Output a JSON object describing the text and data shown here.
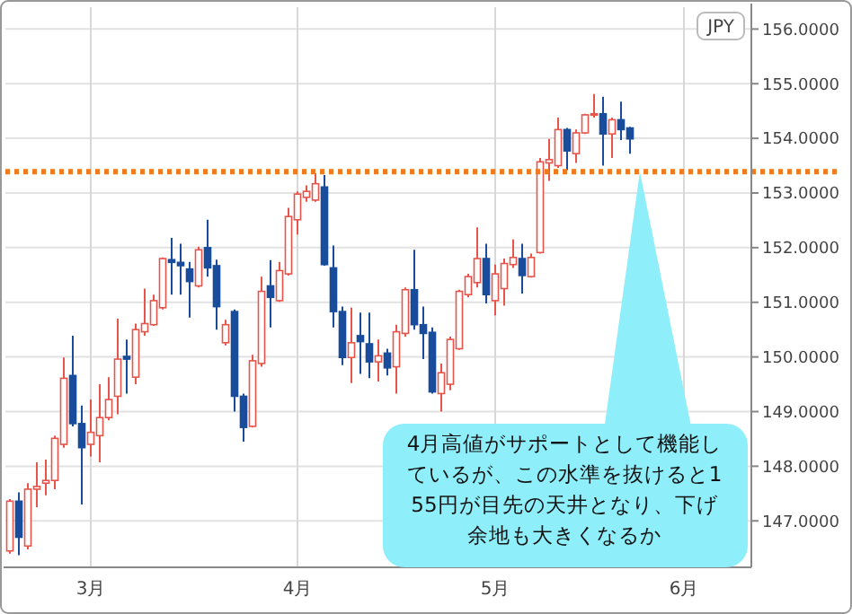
{
  "chart_data": {
    "type": "candlestick",
    "categories": [
      null,
      null,
      null,
      null,
      null,
      null,
      null,
      null,
      null,
      "3月",
      null,
      null,
      null,
      null,
      null,
      null,
      null,
      null,
      null,
      null,
      null,
      null,
      null,
      null,
      null,
      null,
      null,
      null,
      null,
      null,
      null,
      null,
      "4月",
      null,
      null,
      null,
      null,
      null,
      null,
      null,
      null,
      null,
      null,
      null,
      null,
      null,
      null,
      null,
      null,
      null,
      null,
      null,
      null,
      null,
      "5月",
      null,
      null,
      null,
      null,
      null,
      null,
      null,
      null,
      null,
      null,
      null,
      null,
      null,
      null,
      null,
      null,
      null,
      null,
      null,
      null,
      "6月",
      null,
      null,
      null,
      null,
      null,
      null,
      null
    ],
    "ohlc": [
      [
        146.45,
        147.4,
        146.4,
        147.36
      ],
      [
        147.36,
        147.52,
        146.37,
        146.7
      ],
      [
        146.54,
        147.69,
        146.48,
        147.58
      ],
      [
        147.58,
        148.07,
        147.25,
        147.63
      ],
      [
        147.69,
        148.12,
        147.47,
        147.74
      ],
      [
        147.74,
        148.56,
        147.58,
        148.51
      ],
      [
        148.4,
        149.99,
        148.34,
        149.61
      ],
      [
        149.66,
        150.39,
        148.73,
        148.78
      ],
      [
        148.78,
        149.11,
        147.3,
        148.34
      ],
      [
        148.4,
        149.22,
        148.18,
        148.62
      ],
      [
        148.56,
        149.5,
        148.07,
        148.89
      ],
      [
        148.89,
        149.63,
        148.84,
        149.22
      ],
      [
        149.28,
        150.7,
        148.95,
        149.96
      ],
      [
        150.01,
        150.32,
        149.33,
        149.96
      ],
      [
        149.63,
        150.61,
        149.5,
        150.5
      ],
      [
        150.46,
        151.25,
        150.39,
        150.61
      ],
      [
        150.59,
        151.14,
        150.57,
        151.03
      ],
      [
        150.9,
        151.82,
        150.87,
        151.8
      ],
      [
        151.78,
        152.18,
        151.14,
        151.73
      ],
      [
        151.73,
        152.07,
        151.14,
        151.67
      ],
      [
        151.61,
        151.74,
        150.72,
        151.38
      ],
      [
        151.3,
        152.02,
        151.27,
        151.96
      ],
      [
        152,
        152.51,
        151.47,
        151.63
      ],
      [
        151.67,
        151.78,
        150.5,
        150.92
      ],
      [
        150.26,
        150.68,
        150.21,
        150.59
      ],
      [
        150.83,
        150.87,
        149,
        149.28
      ],
      [
        149.28,
        149.33,
        148.45,
        148.71
      ],
      [
        148.73,
        150.04,
        148.71,
        149.93
      ],
      [
        149.88,
        151.47,
        149.82,
        151.2
      ],
      [
        151.3,
        151.77,
        150.54,
        151.09
      ],
      [
        151.03,
        151.74,
        151.01,
        151.58
      ],
      [
        151.52,
        152.73,
        151.49,
        152.57
      ],
      [
        152.51,
        153.03,
        152.24,
        152.98
      ],
      [
        152.92,
        153.14,
        152.84,
        153.03
      ],
      [
        152.87,
        153.36,
        152.84,
        153.17
      ],
      [
        153.11,
        153.33,
        151.67,
        151.69
      ],
      [
        151.63,
        152.04,
        150.54,
        150.83
      ],
      [
        150.83,
        150.92,
        149.85,
        149.99
      ],
      [
        149.99,
        150.9,
        149.52,
        150.26
      ],
      [
        150.39,
        150.81,
        149.69,
        150.28
      ],
      [
        150.24,
        150.81,
        149.61,
        149.91
      ],
      [
        149.91,
        150.32,
        149.55,
        150.02
      ],
      [
        150.07,
        150.15,
        149.66,
        149.8
      ],
      [
        149.82,
        150.59,
        149.33,
        150.46
      ],
      [
        150.43,
        151.27,
        150.37,
        151.23
      ],
      [
        151.23,
        151.96,
        150.5,
        150.59
      ],
      [
        150.59,
        150.92,
        149.96,
        150.43
      ],
      [
        150.45,
        150.54,
        149.33,
        149.36
      ],
      [
        149.33,
        149.88,
        149,
        149.71
      ],
      [
        149.5,
        150.37,
        149.39,
        150.32
      ],
      [
        150.15,
        151.23,
        150.13,
        151.2
      ],
      [
        151.14,
        151.52,
        151.09,
        151.47
      ],
      [
        151.36,
        152.37,
        151.27,
        151.8
      ],
      [
        151.8,
        152.07,
        150.98,
        151.14
      ],
      [
        151.03,
        151.69,
        150.76,
        151.52
      ],
      [
        151.25,
        151.8,
        150.94,
        151.71
      ],
      [
        151.69,
        152.15,
        151.63,
        151.82
      ],
      [
        151.8,
        152.07,
        151.16,
        151.49
      ],
      [
        151.47,
        151.89,
        151.45,
        151.82
      ],
      [
        151.91,
        153.64,
        151.89,
        153.57
      ],
      [
        153.55,
        153.99,
        153.22,
        153.61
      ],
      [
        153.5,
        154.38,
        153.46,
        154.16
      ],
      [
        154.16,
        154.19,
        153.42,
        153.77
      ],
      [
        153.72,
        154.16,
        153.55,
        154.1
      ],
      [
        154.1,
        154.45,
        154.08,
        154.43
      ],
      [
        154.43,
        154.81,
        154.38,
        154.45
      ],
      [
        154.45,
        154.76,
        153.5,
        154.08
      ],
      [
        154.08,
        154.38,
        153.64,
        154.34
      ],
      [
        154.34,
        154.67,
        153.97,
        154.16
      ],
      [
        154.19,
        154.21,
        153.72,
        153.99
      ],
      null,
      null,
      null,
      null,
      null,
      null,
      null,
      null,
      null,
      null,
      null,
      null,
      null
    ],
    "ylim": [
      146.15,
      156.4
    ],
    "yticks": [
      {
        "value": 147,
        "label": "147.0000"
      },
      {
        "value": 148,
        "label": "148.0000"
      },
      {
        "value": 149,
        "label": "149.0000"
      },
      {
        "value": 150,
        "label": "150.0000"
      },
      {
        "value": 151,
        "label": "151.0000"
      },
      {
        "value": 152,
        "label": "152.0000"
      },
      {
        "value": 153,
        "label": "153.0000"
      },
      {
        "value": 154,
        "label": "154.0000"
      },
      {
        "value": 155,
        "label": "155.0000"
      },
      {
        "value": 156,
        "label": "156.0000"
      }
    ],
    "ylabel": "JPY",
    "grid": true,
    "ref_lines": [
      {
        "axis": "y",
        "value": 153.39,
        "color": "#f07a1e",
        "line_style": "dotted"
      }
    ],
    "annotations": [
      "4月高値がサポートとして機能しているが、この水準を抜けると155円が目先の天井となり、下げ余地も大きくなるか"
    ]
  }
}
